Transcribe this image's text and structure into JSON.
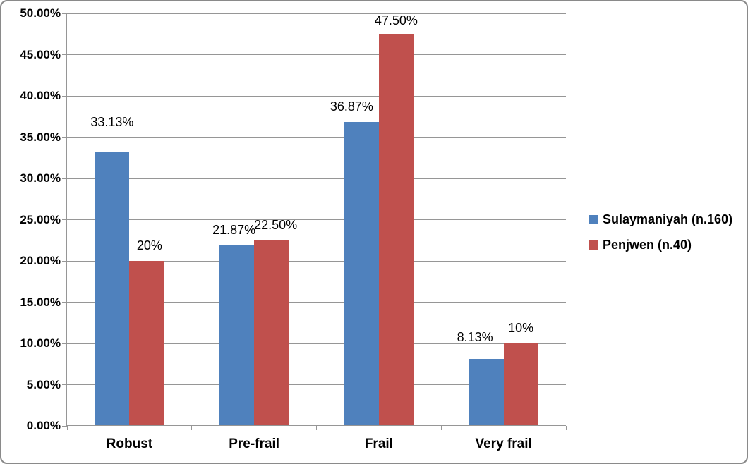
{
  "chart_data": {
    "type": "bar",
    "title": "",
    "xlabel": "",
    "ylabel": "",
    "categories": [
      "Robust",
      "Pre-frail",
      "Frail",
      "Very frail"
    ],
    "series": [
      {
        "name": "Sulaymaniyah (n.160)",
        "color": "#4F81BD",
        "values": [
          33.13,
          21.87,
          36.87,
          8.13
        ],
        "labels": [
          "33.13%",
          "21.87%",
          "36.87%",
          "8.13%"
        ],
        "label_gap": [
          32,
          11,
          11,
          20
        ],
        "label_dx": [
          0,
          -4,
          -14,
          -16
        ]
      },
      {
        "name": "Penjwen (n.40)",
        "color": "#C0504D",
        "values": [
          20,
          22.5,
          47.5,
          10
        ],
        "labels": [
          "20%",
          "22.50%",
          "47.50%",
          "10%"
        ],
        "label_gap": [
          11,
          11,
          8,
          11
        ],
        "label_dx": [
          4,
          6,
          0,
          0
        ]
      }
    ],
    "ylim": [
      0,
      50
    ],
    "ytick_step": 5,
    "yticks": [
      "0.00%",
      "5.00%",
      "10.00%",
      "15.00%",
      "20.00%",
      "25.00%",
      "30.00%",
      "35.00%",
      "40.00%",
      "45.00%",
      "50.00%"
    ],
    "grid": true,
    "legend": {
      "position": "right",
      "entries": [
        {
          "label": "Sulaymaniyah (n.160)",
          "color": "#4F81BD"
        },
        {
          "label": "Penjwen (n.40)",
          "color": "#C0504D"
        }
      ]
    },
    "colors": {
      "gridline": "#969696",
      "axis": "#969696",
      "border": "#8A8A8A",
      "text": "#000000",
      "background": "#FFFFFF"
    }
  }
}
